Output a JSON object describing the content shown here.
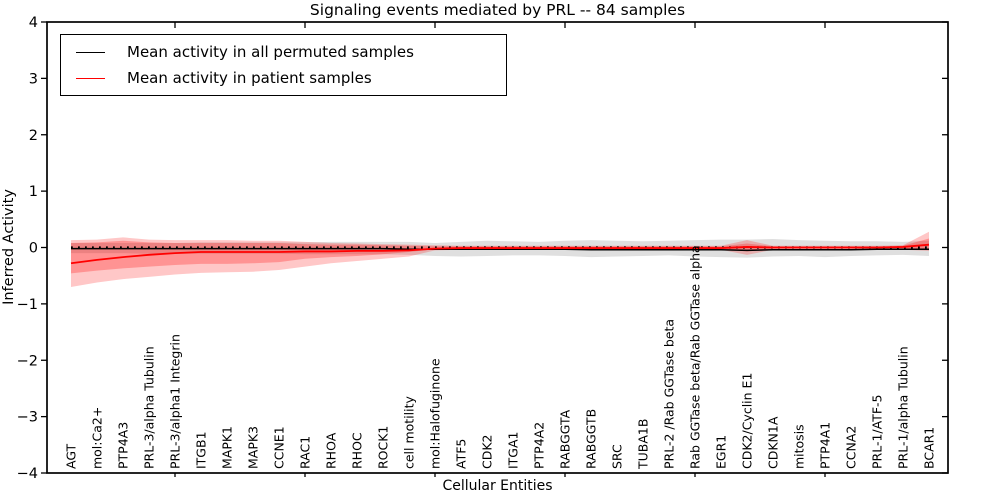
{
  "figure_background": "#ffffff",
  "axes_frame_color": "#000000",
  "chart_data": {
    "type": "line",
    "title": "Signaling events mediated by PRL -- 84 samples",
    "xlabel": "Cellular Entities",
    "ylabel": "Inferred Activity",
    "ylim": [
      -4,
      4
    ],
    "yticks": [
      4,
      3,
      2,
      1,
      0,
      -1,
      -2,
      -3,
      -4
    ],
    "grid": false,
    "top_tick_indices": [
      4,
      9,
      14,
      19,
      24,
      29
    ],
    "categories": [
      "AGT",
      "mol:Ca2+",
      "PTP4A3",
      "PRL-3/alpha Tubulin",
      "PRL-3/alpha1 Integrin",
      "ITGB1",
      "MAPK1",
      "MAPK3",
      "CCNE1",
      "RAC1",
      "RHOA",
      "RHOC",
      "ROCK1",
      "cell motility",
      "mol:Halofuginone",
      "ATF5",
      "CDK2",
      "ITGA1",
      "PTP4A2",
      "RABGGTA",
      "RABGGTB",
      "SRC",
      "TUBA1B",
      "PRL-2 /Rab GGTase beta",
      "Rab GGTase beta/Rab GGTase alpha",
      "EGR1",
      "CDK2/Cyclin E1",
      "CDKN1A",
      "mitosis",
      "PTP4A1",
      "CCNA2",
      "PRL-1/ATF-5",
      "PRL-1/alpha Tubulin",
      "BCAR1"
    ],
    "series": [
      {
        "name": "permuted-mean",
        "label": "Mean activity in all permuted samples",
        "color": "#000000",
        "width": 1.5,
        "values": [
          -0.02,
          -0.02,
          -0.02,
          -0.02,
          -0.02,
          -0.02,
          -0.02,
          -0.02,
          -0.02,
          -0.02,
          -0.02,
          -0.02,
          -0.02,
          -0.03,
          -0.03,
          -0.03,
          -0.03,
          -0.03,
          -0.03,
          -0.03,
          -0.04,
          -0.04,
          -0.04,
          -0.04,
          -0.04,
          -0.04,
          -0.05,
          -0.04,
          -0.04,
          -0.04,
          -0.04,
          -0.03,
          -0.03,
          -0.03
        ]
      },
      {
        "name": "patient-mean",
        "label": "Mean activity in patient samples",
        "color": "#ff0000",
        "width": 1.8,
        "values": [
          -0.28,
          -0.22,
          -0.17,
          -0.13,
          -0.1,
          -0.08,
          -0.08,
          -0.08,
          -0.08,
          -0.07,
          -0.07,
          -0.06,
          -0.06,
          -0.05,
          -0.02,
          -0.01,
          -0.01,
          -0.01,
          -0.01,
          -0.01,
          -0.01,
          -0.01,
          -0.01,
          -0.01,
          -0.01,
          -0.01,
          0.01,
          0.0,
          0.0,
          0.0,
          0.0,
          0.0,
          0.01,
          0.05
        ]
      }
    ],
    "bands": [
      {
        "name": "permuted-range",
        "color": "rgba(110,110,110,0.22)",
        "low": [
          -0.1,
          -0.1,
          -0.1,
          -0.11,
          -0.11,
          -0.11,
          -0.11,
          -0.11,
          -0.11,
          -0.12,
          -0.12,
          -0.12,
          -0.12,
          -0.13,
          -0.15,
          -0.16,
          -0.15,
          -0.14,
          -0.14,
          -0.15,
          -0.17,
          -0.16,
          -0.15,
          -0.14,
          -0.16,
          -0.17,
          -0.18,
          -0.16,
          -0.15,
          -0.17,
          -0.15,
          -0.14,
          -0.13,
          -0.15
        ],
        "high": [
          0.08,
          0.08,
          0.08,
          0.08,
          0.08,
          0.09,
          0.09,
          0.09,
          0.09,
          0.09,
          0.1,
          0.1,
          0.1,
          0.1,
          0.08,
          0.1,
          0.12,
          0.11,
          0.1,
          0.12,
          0.13,
          0.12,
          0.11,
          0.12,
          0.13,
          0.14,
          0.14,
          0.15,
          0.13,
          0.12,
          0.11,
          0.11,
          0.1,
          0.12
        ]
      },
      {
        "name": "patient-range-outer",
        "color": "rgba(255,0,0,0.22)",
        "low": [
          -0.7,
          -0.62,
          -0.56,
          -0.52,
          -0.48,
          -0.45,
          -0.44,
          -0.43,
          -0.4,
          -0.34,
          -0.28,
          -0.24,
          -0.2,
          -0.16,
          -0.05,
          -0.04,
          -0.04,
          -0.04,
          -0.04,
          -0.04,
          -0.04,
          -0.04,
          -0.04,
          -0.04,
          -0.04,
          -0.04,
          -0.13,
          -0.04,
          -0.04,
          -0.04,
          -0.04,
          -0.04,
          -0.04,
          -0.06
        ],
        "high": [
          0.13,
          0.14,
          0.18,
          0.14,
          0.13,
          0.13,
          0.13,
          0.12,
          0.12,
          0.1,
          0.08,
          0.07,
          0.06,
          0.05,
          0.04,
          0.03,
          0.03,
          0.03,
          0.03,
          0.03,
          0.03,
          0.03,
          0.03,
          0.03,
          0.03,
          0.03,
          0.13,
          0.03,
          0.03,
          0.03,
          0.03,
          0.03,
          0.04,
          0.28
        ]
      },
      {
        "name": "patient-range-inner",
        "color": "rgba(255,0,0,0.26)",
        "low": [
          -0.46,
          -0.41,
          -0.37,
          -0.34,
          -0.31,
          -0.29,
          -0.29,
          -0.28,
          -0.26,
          -0.2,
          -0.17,
          -0.15,
          -0.12,
          -0.08,
          -0.03,
          -0.02,
          -0.02,
          -0.02,
          -0.02,
          -0.02,
          -0.02,
          -0.02,
          -0.02,
          -0.02,
          -0.02,
          -0.02,
          -0.07,
          -0.02,
          -0.02,
          -0.02,
          -0.02,
          -0.02,
          -0.02,
          -0.04
        ],
        "high": [
          0.08,
          0.09,
          0.12,
          0.09,
          0.08,
          0.08,
          0.08,
          0.08,
          0.08,
          0.06,
          0.05,
          0.05,
          0.04,
          0.03,
          0.02,
          0.02,
          0.02,
          0.02,
          0.02,
          0.02,
          0.02,
          0.02,
          0.02,
          0.02,
          0.02,
          0.02,
          0.07,
          0.02,
          0.02,
          0.02,
          0.02,
          0.02,
          0.03,
          0.16
        ]
      }
    ],
    "zero_line": {
      "value": 0,
      "style": "dotted",
      "color": "#000000"
    },
    "legend": {
      "position": "upper left",
      "entries": [
        {
          "label": "Mean activity in all permuted samples",
          "color": "#000000"
        },
        {
          "label": "Mean activity in patient samples",
          "color": "#ff0000"
        }
      ]
    }
  }
}
